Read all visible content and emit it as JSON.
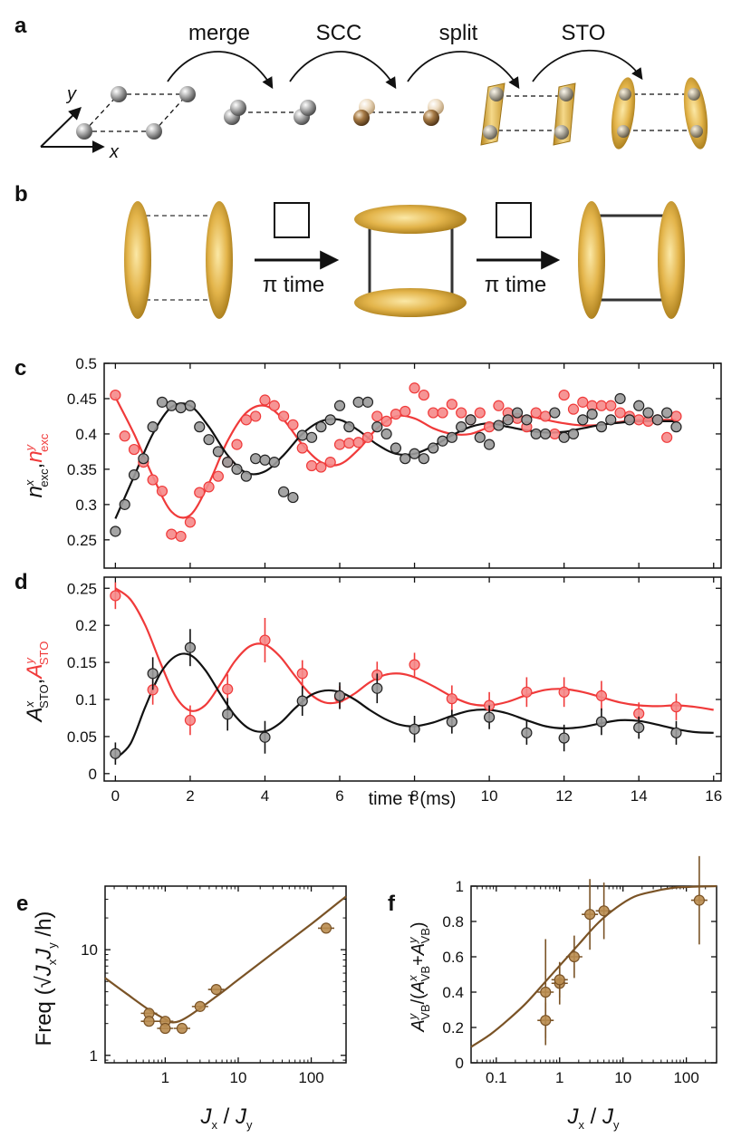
{
  "panels": {
    "a": {
      "label": "a",
      "steps": [
        "merge",
        "SCC",
        "split",
        "STO"
      ],
      "axis_x": "x",
      "axis_y": "y"
    },
    "b": {
      "label": "b",
      "pulse_text": "π time"
    },
    "c": {
      "label": "c"
    },
    "d": {
      "label": "d"
    },
    "e": {
      "label": "e"
    },
    "f": {
      "label": "f"
    }
  },
  "colors": {
    "gold_light": "#f2d88a",
    "gold": "#d9a93a",
    "gold_dark": "#a47818",
    "red": "#f03a3a",
    "red_fill": "#f58a8a",
    "gray_fill": "#9a9a9a",
    "black": "#111111",
    "brown": "#7a5326",
    "brown_fill": "#b98c4f"
  },
  "chart_data": [
    {
      "id": "c",
      "type": "scatter",
      "ylabel": "n^x_exc, n^y_exc",
      "xlim": [
        -0.3,
        16.2
      ],
      "ylim": [
        0.21,
        0.5
      ],
      "yticks": [
        "0.25",
        "0.3",
        "0.35",
        "0.4",
        "0.45",
        "0.5"
      ],
      "series": [
        {
          "color": "red",
          "x": [
            0,
            0.25,
            0.5,
            0.75,
            1,
            1.25,
            1.5,
            1.75,
            2,
            2.25,
            2.5,
            2.75,
            3,
            3.25,
            3.5,
            3.75,
            4,
            4.25,
            4.5,
            4.75,
            5,
            5.25,
            5.5,
            5.75,
            6,
            6.25,
            6.5,
            6.75,
            7,
            7.25,
            7.5,
            7.75,
            8,
            8.25,
            8.5,
            8.75,
            9,
            9.25,
            9.5,
            9.75,
            10,
            10.25,
            10.5,
            10.75,
            11,
            11.25,
            11.5,
            11.75,
            12,
            12.25,
            12.5,
            12.75,
            13,
            13.25,
            13.5,
            13.75,
            14,
            14.25,
            14.5,
            14.75,
            15
          ],
          "y": [
            0.455,
            0.397,
            0.378,
            0.36,
            0.335,
            0.319,
            0.258,
            0.255,
            0.275,
            0.317,
            0.325,
            0.34,
            0.36,
            0.385,
            0.42,
            0.425,
            0.448,
            0.44,
            0.425,
            0.413,
            0.38,
            0.355,
            0.353,
            0.36,
            0.385,
            0.387,
            0.388,
            0.395,
            0.425,
            0.418,
            0.428,
            0.432,
            0.465,
            0.455,
            0.43,
            0.43,
            0.442,
            0.43,
            0.42,
            0.43,
            0.41,
            0.44,
            0.43,
            0.422,
            0.41,
            0.43,
            0.425,
            0.4,
            0.455,
            0.435,
            0.445,
            0.44,
            0.44,
            0.44,
            0.43,
            0.425,
            0.42,
            0.418,
            0.42,
            0.395,
            0.425
          ],
          "fit_x": [
            0,
            0.5,
            1,
            1.5,
            2,
            2.5,
            3,
            3.5,
            4,
            4.5,
            5,
            5.5,
            6,
            6.5,
            7,
            7.5,
            8,
            8.5,
            9,
            9.5,
            10,
            10.5,
            11,
            11.5,
            12,
            12.5,
            13,
            13.5,
            14,
            14.5,
            15
          ],
          "fit_y": [
            0.452,
            0.4,
            0.34,
            0.29,
            0.285,
            0.33,
            0.39,
            0.43,
            0.44,
            0.42,
            0.385,
            0.36,
            0.357,
            0.378,
            0.408,
            0.425,
            0.422,
            0.408,
            0.4,
            0.4,
            0.41,
            0.42,
            0.425,
            0.42,
            0.415,
            0.412,
            0.413,
            0.417,
            0.42,
            0.42,
            0.42
          ]
        },
        {
          "color": "black",
          "x": [
            0,
            0.25,
            0.5,
            0.75,
            1,
            1.25,
            1.5,
            1.75,
            2,
            2.25,
            2.5,
            2.75,
            3,
            3.25,
            3.5,
            3.75,
            4,
            4.25,
            4.5,
            4.75,
            5,
            5.25,
            5.5,
            5.75,
            6,
            6.25,
            6.5,
            6.75,
            7,
            7.25,
            7.5,
            7.75,
            8,
            8.25,
            8.5,
            8.75,
            9,
            9.25,
            9.5,
            9.75,
            10,
            10.25,
            10.5,
            10.75,
            11,
            11.25,
            11.5,
            11.75,
            12,
            12.25,
            12.5,
            12.75,
            13,
            13.25,
            13.5,
            13.75,
            14,
            14.25,
            14.5,
            14.75,
            15
          ],
          "y": [
            0.262,
            0.3,
            0.342,
            0.365,
            0.41,
            0.445,
            0.44,
            0.437,
            0.44,
            0.41,
            0.392,
            0.375,
            0.36,
            0.35,
            0.34,
            0.365,
            0.363,
            0.36,
            0.318,
            0.31,
            0.398,
            0.395,
            0.41,
            0.42,
            0.44,
            0.41,
            0.445,
            0.445,
            0.41,
            0.4,
            0.38,
            0.365,
            0.372,
            0.365,
            0.38,
            0.39,
            0.395,
            0.41,
            0.42,
            0.395,
            0.385,
            0.412,
            0.42,
            0.43,
            0.42,
            0.4,
            0.4,
            0.43,
            0.395,
            0.4,
            0.42,
            0.428,
            0.41,
            0.42,
            0.45,
            0.42,
            0.44,
            0.43,
            0.42,
            0.43,
            0.41
          ],
          "fit_x": [
            0,
            0.5,
            1,
            1.5,
            2,
            2.5,
            3,
            3.5,
            4,
            4.5,
            5,
            5.5,
            6,
            6.5,
            7,
            7.5,
            8,
            8.5,
            9,
            9.5,
            10,
            10.5,
            11,
            11.5,
            12,
            12.5,
            13,
            13.5,
            14,
            14.5,
            15
          ],
          "fit_y": [
            0.28,
            0.34,
            0.4,
            0.438,
            0.44,
            0.41,
            0.37,
            0.345,
            0.347,
            0.37,
            0.4,
            0.418,
            0.42,
            0.405,
            0.385,
            0.372,
            0.372,
            0.383,
            0.398,
            0.41,
            0.415,
            0.41,
            0.405,
            0.402,
            0.403,
            0.408,
            0.413,
            0.416,
            0.418,
            0.418,
            0.418
          ]
        }
      ]
    },
    {
      "id": "d",
      "type": "scatter",
      "xlabel": "time τ (ms)",
      "ylabel": "A^x_STO, A^y_STO",
      "xlim": [
        -0.3,
        16.2
      ],
      "ylim": [
        -0.01,
        0.265
      ],
      "xticks": [
        "0",
        "2",
        "4",
        "6",
        "8",
        "10",
        "12",
        "14",
        "16"
      ],
      "yticks": [
        "0",
        "0.05",
        "0.1",
        "0.15",
        "0.2",
        "0.25"
      ],
      "series": [
        {
          "color": "red",
          "x": [
            0,
            1,
            2,
            3,
            4,
            5,
            6,
            7,
            8,
            9,
            10,
            11,
            12,
            13,
            14,
            15
          ],
          "y": [
            0.24,
            0.113,
            0.072,
            0.114,
            0.18,
            0.135,
            0.103,
            0.133,
            0.147,
            0.101,
            0.092,
            0.11,
            0.11,
            0.105,
            0.081,
            0.09
          ],
          "err": [
            0.018,
            0.02,
            0.02,
            0.02,
            0.03,
            0.018,
            0.015,
            0.018,
            0.016,
            0.018,
            0.018,
            0.02,
            0.02,
            0.02,
            0.015,
            0.018
          ],
          "fit_x": [
            0,
            0.4,
            0.8,
            1.2,
            1.6,
            2,
            2.4,
            2.8,
            3.2,
            3.6,
            4,
            4.4,
            4.8,
            5.2,
            5.6,
            6,
            6.4,
            6.8,
            7.2,
            7.6,
            8,
            8.5,
            9,
            9.5,
            10,
            10.5,
            11,
            11.5,
            12,
            12.5,
            13,
            13.5,
            14,
            14.5,
            15,
            15.5,
            16
          ],
          "fit_y": [
            0.25,
            0.235,
            0.2,
            0.15,
            0.105,
            0.085,
            0.092,
            0.12,
            0.152,
            0.172,
            0.174,
            0.158,
            0.132,
            0.108,
            0.096,
            0.097,
            0.108,
            0.123,
            0.133,
            0.135,
            0.13,
            0.118,
            0.104,
            0.094,
            0.092,
            0.097,
            0.106,
            0.113,
            0.114,
            0.11,
            0.103,
            0.096,
            0.092,
            0.091,
            0.092,
            0.09,
            0.086
          ]
        },
        {
          "color": "black",
          "x": [
            0,
            1,
            2,
            3,
            4,
            5,
            6,
            7,
            8,
            9,
            10,
            11,
            12,
            13,
            14,
            15
          ],
          "y": [
            0.027,
            0.135,
            0.17,
            0.08,
            0.049,
            0.098,
            0.105,
            0.115,
            0.06,
            0.07,
            0.076,
            0.055,
            0.048,
            0.07,
            0.062,
            0.055
          ],
          "err": [
            0.015,
            0.022,
            0.025,
            0.022,
            0.022,
            0.02,
            0.018,
            0.02,
            0.018,
            0.016,
            0.016,
            0.016,
            0.018,
            0.018,
            0.015,
            0.016
          ],
          "fit_x": [
            0,
            0.4,
            0.8,
            1.2,
            1.6,
            2,
            2.4,
            2.8,
            3.2,
            3.6,
            4,
            4.4,
            4.8,
            5.2,
            5.6,
            6,
            6.4,
            6.8,
            7.2,
            7.6,
            8,
            8.5,
            9,
            9.5,
            10,
            10.5,
            11,
            11.5,
            12,
            12.5,
            13,
            13.5,
            14,
            14.5,
            15,
            15.5,
            16
          ],
          "fit_y": [
            0.02,
            0.04,
            0.09,
            0.135,
            0.158,
            0.16,
            0.14,
            0.108,
            0.078,
            0.06,
            0.057,
            0.068,
            0.088,
            0.105,
            0.112,
            0.11,
            0.1,
            0.086,
            0.074,
            0.066,
            0.064,
            0.069,
            0.078,
            0.085,
            0.086,
            0.081,
            0.072,
            0.064,
            0.061,
            0.063,
            0.068,
            0.072,
            0.071,
            0.066,
            0.06,
            0.056,
            0.055
          ]
        }
      ]
    },
    {
      "id": "e",
      "type": "scatter",
      "xlabel": "J_x / J_y",
      "ylabel": "Freq (√J_xJ_y /h)",
      "xscale": "log",
      "yscale": "log",
      "xlim": [
        0.15,
        300
      ],
      "ylim": [
        0.85,
        40
      ],
      "xticks": [
        "1",
        "10",
        "100"
      ],
      "yticks": [
        "1",
        "10"
      ],
      "series": [
        {
          "color": "brown",
          "x": [
            0.6,
            0.6,
            1,
            1,
            1.7,
            3,
            5,
            160
          ],
          "y": [
            2.5,
            2.1,
            2.1,
            1.8,
            1.8,
            2.9,
            4.2,
            16
          ],
          "fit_x": [
            0.15,
            0.3,
            0.6,
            1,
            1.3,
            2,
            5,
            10,
            30,
            100,
            300
          ],
          "fit_y": [
            5.4,
            3.8,
            2.7,
            2.2,
            2.05,
            2.3,
            3.6,
            5.2,
            9.3,
            17.5,
            32
          ]
        }
      ]
    },
    {
      "id": "f",
      "type": "scatter",
      "xlabel": "J_x / J_y",
      "ylabel": "A^y_VB/(A^x_VB+A^y_VB)",
      "xscale": "log",
      "xlim": [
        0.04,
        300
      ],
      "ylim": [
        0,
        1
      ],
      "xticks": [
        "0.1",
        "1",
        "10",
        "100"
      ],
      "yticks": [
        "0",
        "0.2",
        "0.4",
        "0.6",
        "0.8",
        "1"
      ],
      "series": [
        {
          "color": "brown",
          "x": [
            0.6,
            0.6,
            1,
            1,
            1.7,
            3,
            5,
            160
          ],
          "y": [
            0.4,
            0.24,
            0.45,
            0.47,
            0.6,
            0.84,
            0.86,
            0.92
          ],
          "err": [
            0.3,
            0.1,
            0.12,
            0.1,
            0.12,
            0.2,
            0.16,
            0.25
          ],
          "fit_x": [
            0.04,
            0.08,
            0.15,
            0.3,
            0.6,
            1,
            2,
            4,
            8,
            15,
            30,
            60,
            100,
            300
          ],
          "fit_y": [
            0.09,
            0.16,
            0.24,
            0.34,
            0.46,
            0.55,
            0.67,
            0.79,
            0.88,
            0.94,
            0.97,
            0.99,
            0.995,
            1.0
          ]
        }
      ]
    }
  ]
}
